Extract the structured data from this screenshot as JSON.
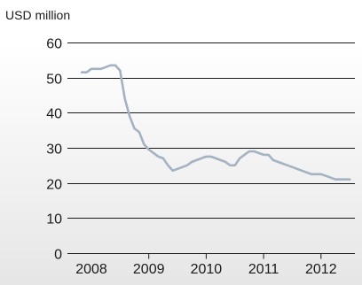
{
  "chart_data": {
    "type": "line",
    "unit_label": "USD million",
    "x": [
      "2007-11",
      "2007-12",
      "2008-01",
      "2008-02",
      "2008-03",
      "2008-04",
      "2008-05",
      "2008-06",
      "2008-07",
      "2008-08",
      "2008-09",
      "2008-10",
      "2008-11",
      "2008-12",
      "2009-01",
      "2009-02",
      "2009-03",
      "2009-04",
      "2009-05",
      "2009-06",
      "2009-07",
      "2009-08",
      "2009-09",
      "2009-10",
      "2009-11",
      "2009-12",
      "2010-01",
      "2010-02",
      "2010-03",
      "2010-04",
      "2010-05",
      "2010-06",
      "2010-07",
      "2010-08",
      "2010-09",
      "2010-10",
      "2010-11",
      "2010-12",
      "2011-01",
      "2011-02",
      "2011-03",
      "2011-04",
      "2011-05",
      "2011-06",
      "2011-07",
      "2011-08",
      "2011-09",
      "2011-10",
      "2011-11",
      "2011-12",
      "2012-01",
      "2012-02",
      "2012-03",
      "2012-04",
      "2012-05",
      "2012-06",
      "2012-07"
    ],
    "series": [
      {
        "values": [
          51.5,
          51.5,
          52.5,
          52.5,
          52.5,
          53.0,
          53.5,
          53.5,
          52.0,
          44.0,
          39.0,
          35.5,
          34.5,
          31.0,
          29.5,
          28.5,
          27.5,
          27.0,
          25.0,
          23.5,
          24.0,
          24.5,
          25.0,
          26.0,
          26.5,
          27.0,
          27.5,
          27.5,
          27.0,
          26.5,
          26.0,
          25.0,
          25.0,
          27.0,
          28.0,
          29.0,
          29.0,
          28.5,
          28.0,
          28.0,
          26.5,
          26.0,
          25.5,
          25.0,
          24.5,
          24.0,
          23.5,
          23.0,
          22.5,
          22.5,
          22.5,
          22.0,
          21.5,
          21.0,
          21.0,
          21.0,
          21.0
        ]
      }
    ],
    "xticks": [
      "2008",
      "2009",
      "2010",
      "2011",
      "2012"
    ],
    "yticks": [
      0,
      10,
      20,
      30,
      40,
      50,
      60
    ],
    "ylim": [
      0,
      60
    ],
    "grid": true,
    "colors": {
      "line": "#a4b2c2",
      "plot_fill_bottom": "#e6e6e6"
    }
  }
}
